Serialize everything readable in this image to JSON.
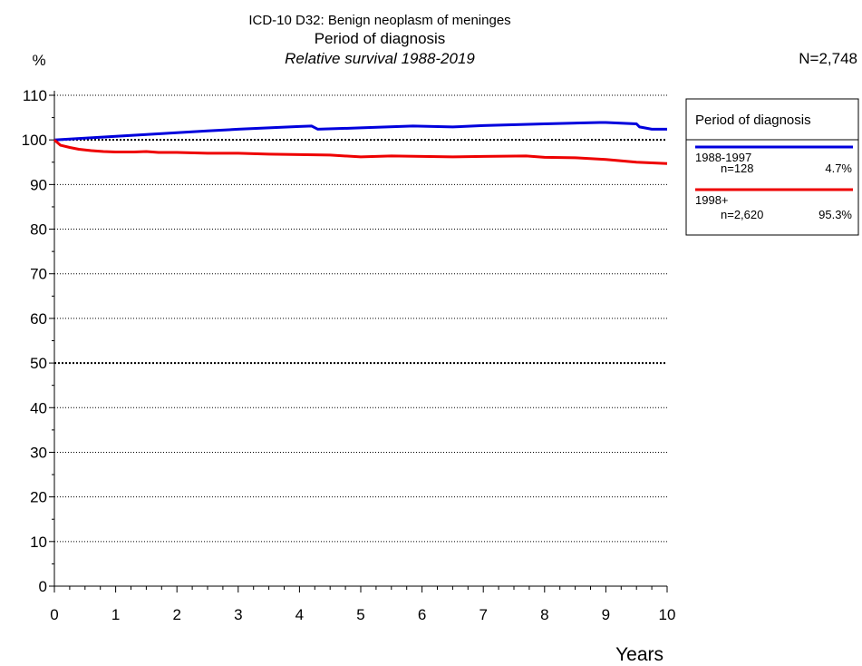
{
  "chart_data": {
    "type": "line",
    "title": "ICD-10 D32: Benign neoplasm of meninges",
    "subtitle": "Period of diagnosis",
    "caption": "Relative survival 1988-2019",
    "total_n": "N=2,748",
    "xlabel": "Years",
    "ylabel": "%",
    "xlim": [
      0,
      10
    ],
    "ylim": [
      0,
      110
    ],
    "x_ticks": [
      "0",
      "1",
      "2",
      "3",
      "4",
      "5",
      "6",
      "7",
      "8",
      "9",
      "10"
    ],
    "y_ticks": [
      "0",
      "10",
      "20",
      "30",
      "40",
      "50",
      "60",
      "70",
      "80",
      "90",
      "100",
      "110"
    ],
    "grid": "horizontal dotted",
    "legend": {
      "title": "Period of diagnosis",
      "placement": "right"
    },
    "series": [
      {
        "name": "1988-1997",
        "n": "n=128",
        "pct": "4.7%",
        "color": "#0000dd",
        "points": [
          [
            0,
            100
          ],
          [
            0.5,
            100.4
          ],
          [
            1,
            100.8
          ],
          [
            1.5,
            101.2
          ],
          [
            2,
            101.6
          ],
          [
            2.5,
            102.0
          ],
          [
            3,
            102.4
          ],
          [
            3.5,
            102.7
          ],
          [
            4,
            103.0
          ],
          [
            4.2,
            103.1
          ],
          [
            4.3,
            102.4
          ],
          [
            5,
            102.7
          ],
          [
            5.85,
            103.1
          ],
          [
            6.5,
            102.9
          ],
          [
            7,
            103.2
          ],
          [
            8,
            103.6
          ],
          [
            8.9,
            103.9
          ],
          [
            9,
            103.9
          ],
          [
            9.5,
            103.6
          ],
          [
            9.55,
            102.9
          ],
          [
            9.75,
            102.4
          ],
          [
            10,
            102.4
          ]
        ]
      },
      {
        "name": "1998+",
        "n": "n=2,620",
        "pct": "95.3%",
        "color": "#ee0000",
        "points": [
          [
            0,
            100
          ],
          [
            0.1,
            98.8
          ],
          [
            0.25,
            98.3
          ],
          [
            0.4,
            97.9
          ],
          [
            0.6,
            97.6
          ],
          [
            0.8,
            97.4
          ],
          [
            1,
            97.3
          ],
          [
            1.3,
            97.3
          ],
          [
            1.5,
            97.4
          ],
          [
            1.7,
            97.2
          ],
          [
            2,
            97.2
          ],
          [
            2.5,
            97.0
          ],
          [
            3,
            97.0
          ],
          [
            3.5,
            96.8
          ],
          [
            4,
            96.7
          ],
          [
            4.5,
            96.6
          ],
          [
            5,
            96.2
          ],
          [
            5.5,
            96.4
          ],
          [
            6,
            96.3
          ],
          [
            6.5,
            96.2
          ],
          [
            7,
            96.3
          ],
          [
            7.7,
            96.4
          ],
          [
            8,
            96.1
          ],
          [
            8.5,
            96.0
          ],
          [
            9,
            95.6
          ],
          [
            9.5,
            95.0
          ],
          [
            10,
            94.7
          ]
        ]
      }
    ]
  }
}
